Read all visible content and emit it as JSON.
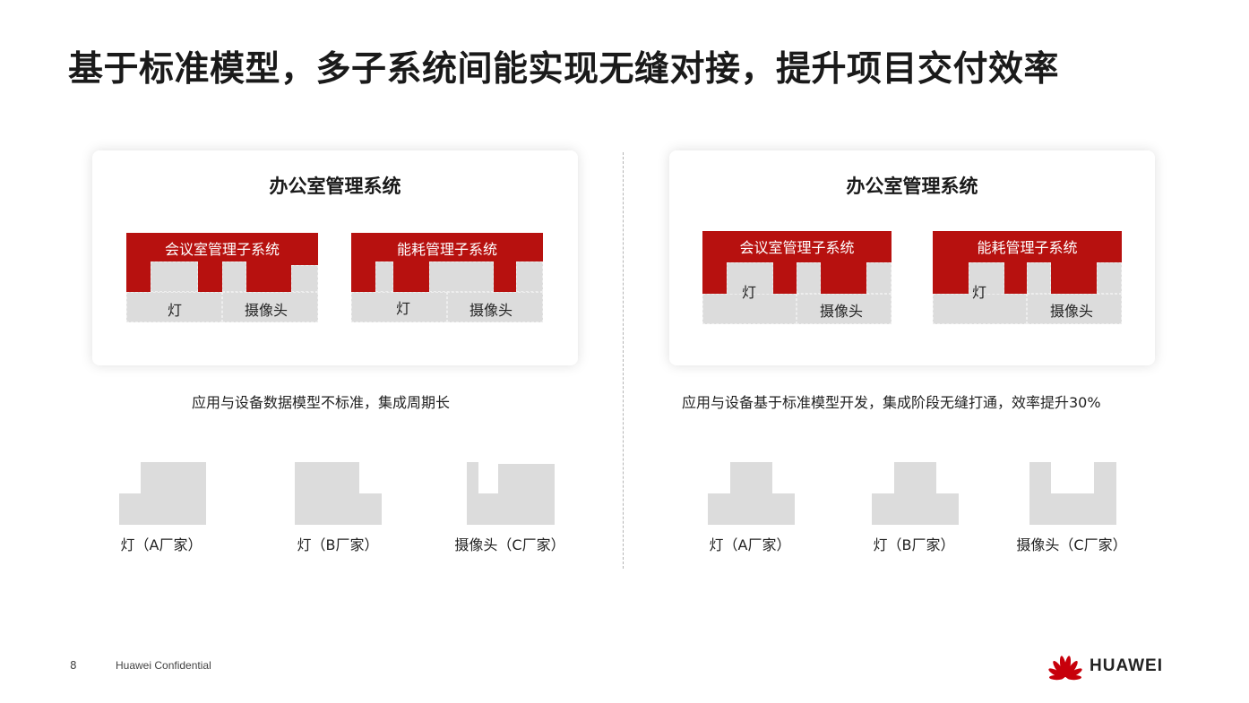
{
  "title": "基于标准模型，多子系统间能实现无缝对接，提升项目交付效率",
  "left": {
    "card_title": "办公室管理系统",
    "subsystems": [
      {
        "name": "会议室管理子系统",
        "device_labels": [
          "灯",
          "摄像头"
        ]
      },
      {
        "name": "能耗管理子系统",
        "device_labels": [
          "灯",
          "摄像头"
        ]
      }
    ],
    "caption": "应用与设备数据模型不标准，集成周期长",
    "devices": [
      "灯（A厂家）",
      "灯（B厂家）",
      "摄像头（C厂家）"
    ]
  },
  "right": {
    "card_title": "办公室管理系统",
    "subsystems": [
      {
        "name": "会议室管理子系统",
        "device_labels": [
          "灯",
          "摄像头"
        ]
      },
      {
        "name": "能耗管理子系统",
        "device_labels": [
          "灯",
          "摄像头"
        ]
      }
    ],
    "caption": "应用与设备基于标准模型开发，集成阶段无缝打通，效率提升30%",
    "devices": [
      "灯（A厂家）",
      "灯（B厂家）",
      "摄像头（C厂家）"
    ]
  },
  "footer": {
    "page_number": "8",
    "confidential": "Huawei Confidential",
    "brand": "HUAWEI"
  },
  "colors": {
    "accent_red": "#b7110f",
    "block_gray": "#dcdcdc"
  }
}
